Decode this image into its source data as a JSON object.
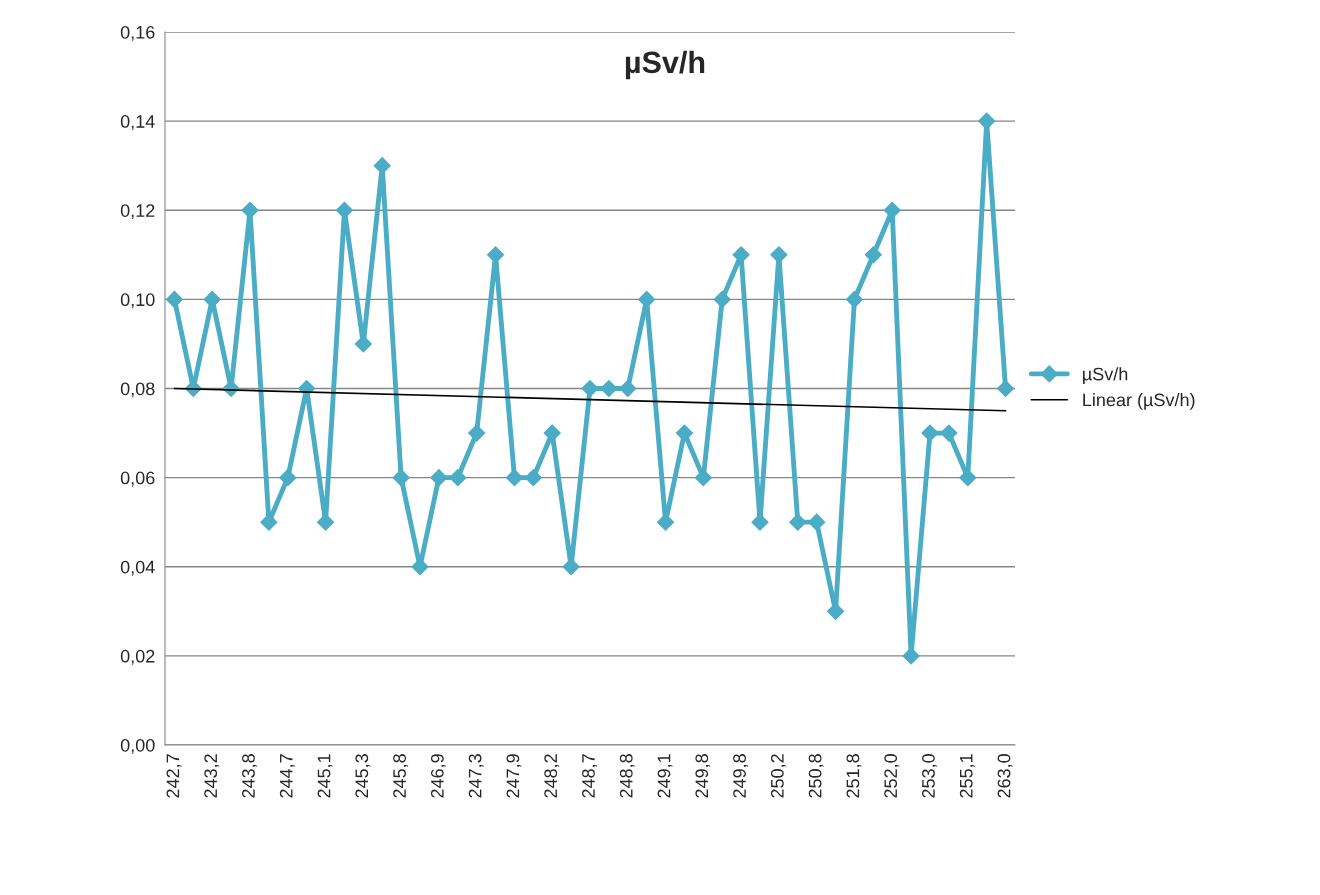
{
  "chart_data": {
    "type": "line",
    "title": "µSv/h",
    "categories": [
      "242,7",
      null,
      "243,2",
      null,
      "243,8",
      null,
      "244,7",
      null,
      "245,1",
      null,
      "245,3",
      null,
      "245,8",
      null,
      "246,9",
      null,
      "247,3",
      null,
      "247,9",
      null,
      "248,2",
      null,
      "248,7",
      null,
      "248,8",
      null,
      "249,1",
      null,
      "249,8",
      null,
      "249,8",
      null,
      "250,2",
      null,
      "250,8",
      null,
      "251,8",
      null,
      "252,0",
      null,
      "253,0",
      null,
      "255,1",
      null,
      "263,0"
    ],
    "series": [
      {
        "name": "µSv/h",
        "color": "#4bacc6",
        "marker": "diamond",
        "line_style": "solid",
        "values": [
          0.1,
          0.08,
          0.1,
          0.08,
          0.12,
          0.05,
          0.06,
          0.08,
          0.05,
          0.12,
          0.09,
          0.13,
          0.06,
          0.04,
          0.06,
          0.06,
          0.07,
          0.11,
          0.06,
          0.06,
          0.07,
          0.04,
          0.08,
          0.08,
          0.08,
          0.1,
          0.05,
          0.07,
          0.06,
          0.1,
          0.11,
          0.05,
          0.11,
          0.05,
          0.05,
          0.03,
          0.1,
          0.11,
          0.12,
          0.02,
          0.07,
          0.07,
          0.06,
          0.14,
          0.08
        ]
      },
      {
        "name": "Linear (µSv/h)",
        "type": "line",
        "color": "#000000",
        "marker": "none",
        "line_style": "solid",
        "values": [
          0.08,
          null,
          null,
          null,
          null,
          null,
          null,
          null,
          null,
          null,
          null,
          null,
          null,
          null,
          null,
          null,
          null,
          null,
          null,
          null,
          null,
          null,
          null,
          null,
          null,
          null,
          null,
          null,
          null,
          null,
          null,
          null,
          null,
          null,
          null,
          null,
          null,
          null,
          null,
          null,
          null,
          null,
          null,
          null,
          0.075
        ]
      }
    ],
    "ylim": [
      0,
      0.16
    ],
    "yticks": [
      {
        "value": 0,
        "label": "0,00"
      },
      {
        "value": 0.02,
        "label": "0,02"
      },
      {
        "value": 0.04,
        "label": "0,04"
      },
      {
        "value": 0.06,
        "label": "0,06"
      },
      {
        "value": 0.08,
        "label": "0,08"
      },
      {
        "value": 0.1,
        "label": "0,10"
      },
      {
        "value": 0.12,
        "label": "0,12"
      },
      {
        "value": 0.14,
        "label": "0,14"
      },
      {
        "value": 0.16,
        "label": "0,16"
      }
    ],
    "grid": "y",
    "legend": "right"
  }
}
